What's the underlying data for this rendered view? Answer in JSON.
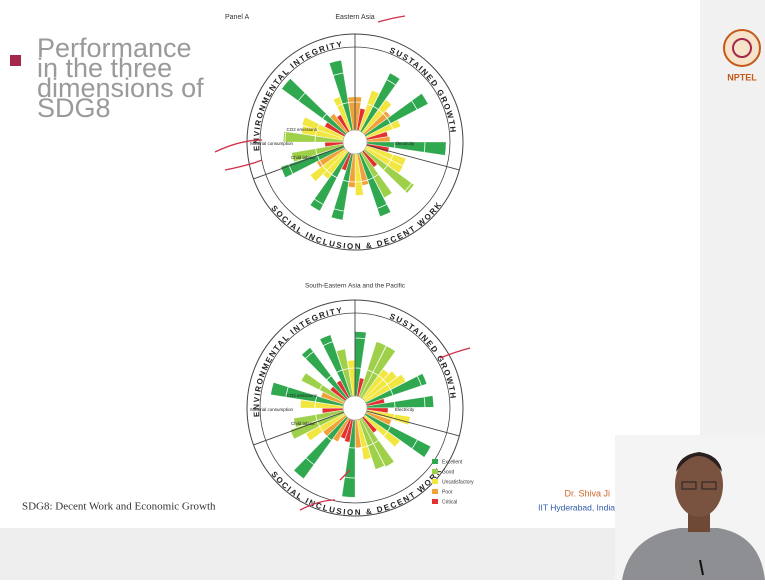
{
  "slide": {
    "title_lines": [
      "Performance",
      "in the three",
      "dimensions of",
      "SDG8"
    ],
    "panel_label": "Panel A"
  },
  "charts": [
    {
      "title": "Eastern Asia",
      "dimensions": [
        "ENVIRONMENTAL INTEGRITY",
        "SUSTAINED GROWTH",
        "SOCIAL INCLUSION & DECENT WORK"
      ],
      "labels": [
        "Material consumption",
        "CO2 emissions",
        "Child labour",
        "Electricity"
      ]
    },
    {
      "title": "South-Eastern Asia and the Pacific",
      "dimensions": [
        "ENVIRONMENTAL INTEGRITY",
        "SUSTAINED GROWTH",
        "SOCIAL INCLUSION & DECENT WORK"
      ],
      "labels": [
        "Material consumption",
        "CO2 emissions",
        "Child labour",
        "Electricity"
      ]
    }
  ],
  "legend": [
    "Excellent",
    "Good",
    "Unsatisfactory",
    "Poor",
    "Critical"
  ],
  "footer": {
    "left": "SDG8: Decent Work and Economic Growth",
    "presenter": "Dr. Shiva Ji",
    "institute": "IIT Hyderabad, India"
  },
  "logo": "NPTEL"
}
